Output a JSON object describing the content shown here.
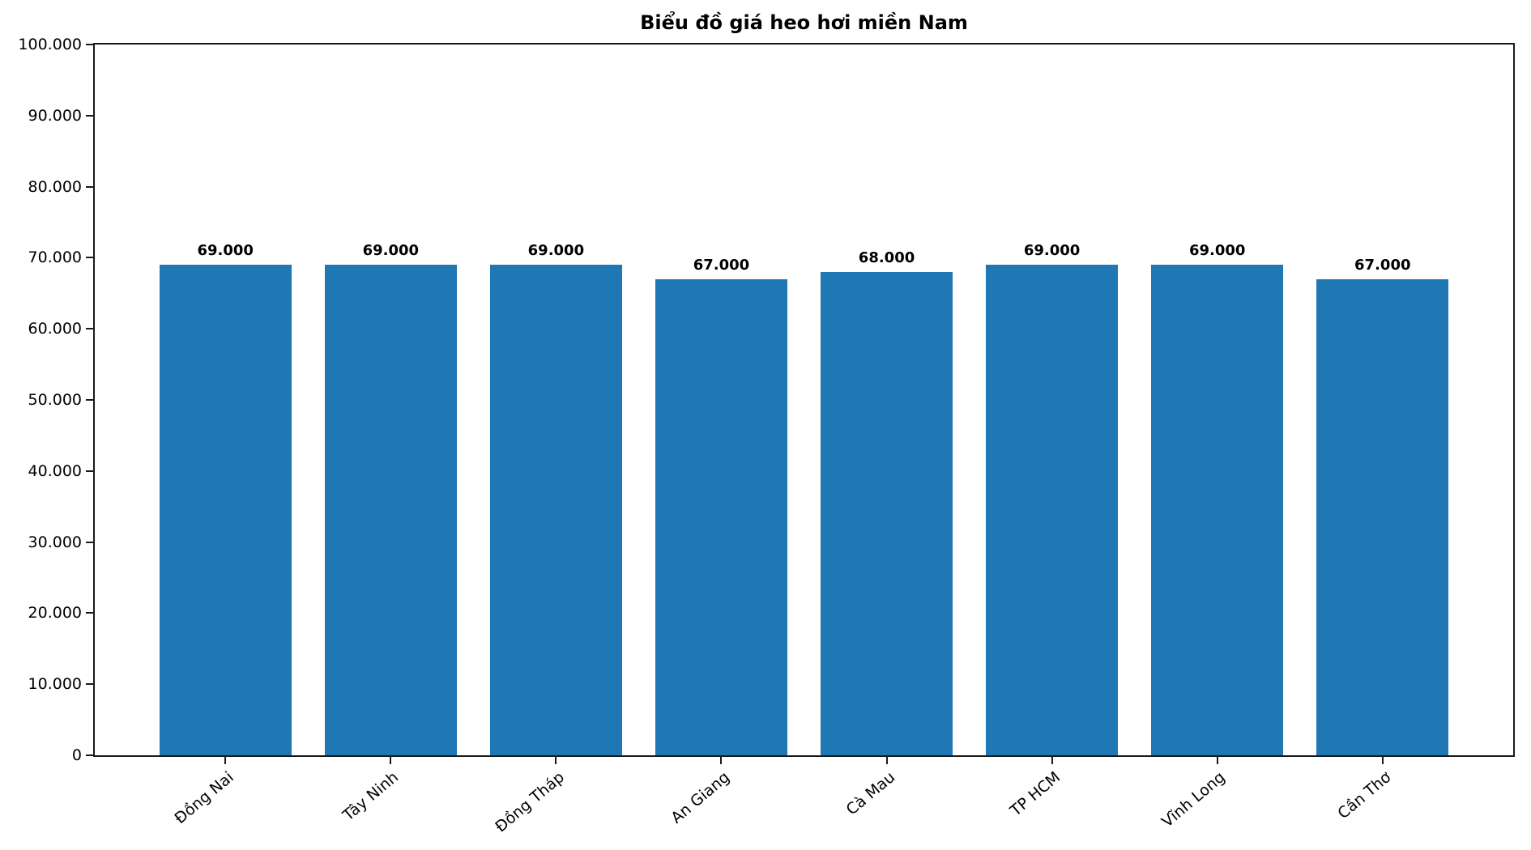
{
  "chart_data": {
    "type": "bar",
    "title": "Biểu đồ giá heo hơi miền Nam",
    "categories": [
      "Đồng Nai",
      "Tây Ninh",
      "Đồng Tháp",
      "An Giang",
      "Cà Mau",
      "TP HCM",
      "Vĩnh Long",
      "Cần Thơ"
    ],
    "values": [
      69000,
      69000,
      69000,
      67000,
      68000,
      69000,
      69000,
      67000
    ],
    "bar_labels": [
      "69.000",
      "69.000",
      "69.000",
      "67.000",
      "68.000",
      "69.000",
      "69.000",
      "67.000"
    ],
    "y_ticks": [
      {
        "value": 0,
        "label": "0"
      },
      {
        "value": 10000,
        "label": "10.000"
      },
      {
        "value": 20000,
        "label": "20.000"
      },
      {
        "value": 30000,
        "label": "30.000"
      },
      {
        "value": 40000,
        "label": "40.000"
      },
      {
        "value": 50000,
        "label": "50.000"
      },
      {
        "value": 60000,
        "label": "60.000"
      },
      {
        "value": 70000,
        "label": "70.000"
      },
      {
        "value": 80000,
        "label": "80.000"
      },
      {
        "value": 90000,
        "label": "90.000"
      },
      {
        "value": 100000,
        "label": "100.000"
      }
    ],
    "ylim": [
      0,
      100000
    ],
    "xlabel": "",
    "ylabel": "",
    "grid": false,
    "legend_position": "none",
    "x_tick_rotation_deg": 40,
    "bar_color": "#1f77b4",
    "axis_color": "#1a1a1a",
    "text_color": "#000000"
  }
}
